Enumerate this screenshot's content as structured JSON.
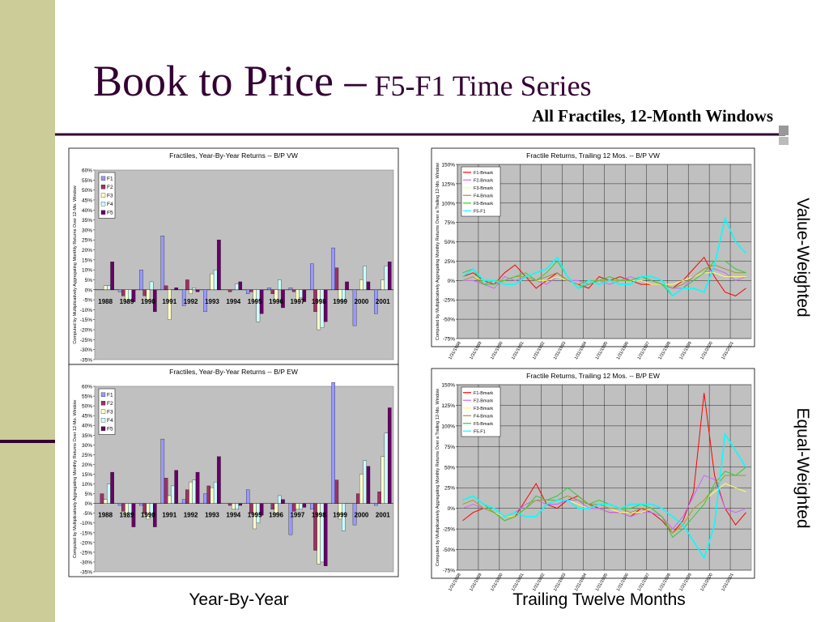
{
  "slide": {
    "title": "Book to Price –",
    "title_small": "F5-F1 Time Series",
    "subtitle": "All Fractiles, 12-Month Windows",
    "side_labels": [
      "Value-Weighted",
      "Equal-Weighted"
    ],
    "bottom_labels": [
      "Year-By-Year",
      "Trailing Twelve Months"
    ]
  },
  "chart_data": [
    {
      "type": "bar",
      "title": "Fractiles, Year-By-Year Returns -- B/P VW",
      "y_label": "Computed by Multiplicatively Aggregating Monthly Returns Over 12-Mo. Window",
      "categories": [
        "1988",
        "1989",
        "1990",
        "1991",
        "1992",
        "1993",
        "1994",
        "1995",
        "1996",
        "1997",
        "1998",
        "1999",
        "2000",
        "2001"
      ],
      "series": [
        {
          "name": "F1",
          "color": "#9999ff",
          "values": [
            0,
            -1,
            10,
            27,
            -8,
            -11,
            0,
            -2,
            1,
            1,
            13,
            21,
            -18,
            -12
          ]
        },
        {
          "name": "F2",
          "color": "#993366",
          "values": [
            0,
            -3,
            -3,
            2,
            5,
            0,
            -1,
            -1,
            -2,
            -1,
            -11,
            11,
            0,
            0
          ]
        },
        {
          "name": "F3",
          "color": "#ffffcc",
          "values": [
            2,
            -6,
            -5,
            -15,
            -2,
            8,
            0,
            -6,
            -6,
            -6,
            -20,
            -5,
            5,
            5
          ]
        },
        {
          "name": "F4",
          "color": "#ccffff",
          "values": [
            2,
            -5,
            4,
            0,
            1,
            10,
            3,
            -16,
            5,
            -4,
            -19,
            -6,
            12,
            12
          ]
        },
        {
          "name": "F5",
          "color": "#660066",
          "values": [
            14,
            -6,
            -11,
            1,
            -1,
            25,
            4,
            -12,
            -9,
            -6,
            -16,
            4,
            4,
            14
          ]
        }
      ],
      "ylim": [
        -35,
        60
      ],
      "yticks": [
        {
          "value": -35,
          "label": "-35%"
        },
        {
          "value": -30,
          "label": "-30%"
        },
        {
          "value": -25,
          "label": "-25%"
        },
        {
          "value": -20,
          "label": "-20%"
        },
        {
          "value": -15,
          "label": "-15%"
        },
        {
          "value": -10,
          "label": "-10%"
        },
        {
          "value": -5,
          "label": "-5%"
        },
        {
          "value": 0,
          "label": "0%"
        },
        {
          "value": 5,
          "label": "5%"
        },
        {
          "value": 10,
          "label": "10%"
        },
        {
          "value": 15,
          "label": "15%"
        },
        {
          "value": 20,
          "label": "20%"
        },
        {
          "value": 25,
          "label": "25%"
        },
        {
          "value": 30,
          "label": "30%"
        },
        {
          "value": 35,
          "label": "35%"
        },
        {
          "value": 40,
          "label": "40%"
        },
        {
          "value": 45,
          "label": "45%"
        },
        {
          "value": 50,
          "label": "50%"
        },
        {
          "value": 55,
          "label": "55%"
        },
        {
          "value": 60,
          "label": "60%"
        }
      ],
      "grid": false,
      "legend": "upper left"
    },
    {
      "type": "line",
      "title": "Fractile Returns, Trailing 12 Mos. -- B/P VW",
      "y_label": "Computed by Multiplicatively Aggregating Monthly Returns Over a Trailing 12-Mo. Window",
      "categories": [
        "1/31/1988",
        null,
        "1/31/1989",
        null,
        "1/31/1990",
        null,
        "1/31/1991",
        null,
        "1/31/1992",
        null,
        "1/31/1993",
        null,
        "1/31/1994",
        null,
        "1/31/1995",
        null,
        "1/31/1996",
        null,
        "1/31/1997",
        null,
        "1/31/1998",
        null,
        "1/31/1999",
        null,
        "1/31/2000",
        null,
        "1/31/2001",
        null
      ],
      "series": [
        {
          "name": "F1-Bmark",
          "color": "#ff0000",
          "values": [
            5,
            10,
            0,
            -5,
            10,
            20,
            5,
            -10,
            0,
            10,
            0,
            -5,
            -10,
            5,
            0,
            5,
            0,
            -5,
            -5,
            -5,
            -10,
            0,
            15,
            30,
            5,
            -15,
            -20,
            -10
          ]
        },
        {
          "name": "F2-Bmark",
          "color": "#cc66ff",
          "values": [
            0,
            0,
            -5,
            -10,
            5,
            0,
            5,
            0,
            -5,
            5,
            0,
            0,
            -5,
            0,
            -5,
            0,
            5,
            0,
            -5,
            -5,
            -10,
            -10,
            5,
            10,
            15,
            10,
            0,
            5
          ]
        },
        {
          "name": "F3-Bmark",
          "color": "#ffff66",
          "values": [
            0,
            5,
            0,
            0,
            0,
            5,
            5,
            0,
            0,
            5,
            0,
            -5,
            0,
            0,
            0,
            0,
            0,
            0,
            -5,
            -5,
            -5,
            0,
            5,
            10,
            10,
            5,
            5,
            5
          ]
        },
        {
          "name": "F4-Bmark",
          "color": "#999933",
          "values": [
            0,
            5,
            -5,
            0,
            0,
            5,
            5,
            0,
            5,
            10,
            0,
            -5,
            0,
            0,
            0,
            0,
            0,
            5,
            0,
            -5,
            -10,
            -5,
            5,
            15,
            20,
            15,
            10,
            10
          ]
        },
        {
          "name": "F5-Bmark",
          "color": "#33cc33",
          "values": [
            10,
            15,
            -5,
            -5,
            0,
            5,
            10,
            0,
            10,
            25,
            5,
            -10,
            -5,
            0,
            5,
            0,
            0,
            5,
            0,
            -5,
            -20,
            -10,
            0,
            10,
            25,
            25,
            15,
            10
          ]
        },
        {
          "name": "F5-F1",
          "color": "#00ffff",
          "values": [
            5,
            15,
            0,
            0,
            -5,
            -5,
            5,
            10,
            15,
            30,
            5,
            -10,
            0,
            -5,
            0,
            -5,
            -5,
            5,
            5,
            0,
            -20,
            -10,
            -10,
            -15,
            20,
            80,
            50,
            35
          ]
        }
      ],
      "ylim": [
        -75,
        150
      ],
      "yticks": [
        {
          "value": -75,
          "label": "-75%"
        },
        {
          "value": -50,
          "label": "-50%"
        },
        {
          "value": -25,
          "label": "-25%"
        },
        {
          "value": 0,
          "label": "0%"
        },
        {
          "value": 25,
          "label": "25%"
        },
        {
          "value": 50,
          "label": "50%"
        },
        {
          "value": 75,
          "label": "75%"
        },
        {
          "value": 100,
          "label": "100%"
        },
        {
          "value": 125,
          "label": "125%"
        },
        {
          "value": 150,
          "label": "150%"
        }
      ],
      "grid": true,
      "legend": "upper left"
    },
    {
      "type": "bar",
      "title": "Fractiles, Year-By-Year Returns -- B/P EW",
      "y_label": "Computed by Multiplicatively Aggregating Monthly Returns Over 12-Mo. Window",
      "categories": [
        "1988",
        "1989",
        "1990",
        "1991",
        "1992",
        "1993",
        "1994",
        "1995",
        "1996",
        "1997",
        "1998",
        "1999",
        "2000",
        "2001"
      ],
      "series": [
        {
          "name": "F1",
          "color": "#9999ff",
          "values": [
            0,
            -1,
            -1,
            33,
            2,
            5,
            0,
            7,
            0,
            -16,
            -3,
            62,
            -11,
            -1
          ]
        },
        {
          "name": "F2",
          "color": "#993366",
          "values": [
            5,
            -4,
            -5,
            13,
            7,
            9,
            -1,
            -5,
            -3,
            -4,
            -24,
            12,
            5,
            6
          ]
        },
        {
          "name": "F3",
          "color": "#ffffcc",
          "values": [
            2,
            -7,
            -8,
            4,
            11,
            8,
            -3,
            -13,
            -5,
            -3,
            -31,
            -8,
            15,
            24
          ]
        },
        {
          "name": "F4",
          "color": "#ccffff",
          "values": [
            10,
            -7,
            -7,
            9,
            12,
            11,
            -3,
            -10,
            4,
            -3,
            -30,
            -14,
            22,
            36
          ]
        },
        {
          "name": "F5",
          "color": "#660066",
          "values": [
            16,
            -12,
            -12,
            17,
            16,
            24,
            -1,
            -6,
            2,
            -2,
            -32,
            0,
            19,
            49
          ]
        }
      ],
      "ylim": [
        -35,
        60
      ],
      "yticks": [
        {
          "value": -35,
          "label": "-35%"
        },
        {
          "value": -30,
          "label": "-30%"
        },
        {
          "value": -25,
          "label": "-25%"
        },
        {
          "value": -20,
          "label": "-20%"
        },
        {
          "value": -15,
          "label": "-15%"
        },
        {
          "value": -10,
          "label": "-10%"
        },
        {
          "value": -5,
          "label": "-5%"
        },
        {
          "value": 0,
          "label": "0%"
        },
        {
          "value": 5,
          "label": "5%"
        },
        {
          "value": 10,
          "label": "10%"
        },
        {
          "value": 15,
          "label": "15%"
        },
        {
          "value": 20,
          "label": "20%"
        },
        {
          "value": 25,
          "label": "25%"
        },
        {
          "value": 30,
          "label": "30%"
        },
        {
          "value": 35,
          "label": "35%"
        },
        {
          "value": 40,
          "label": "40%"
        },
        {
          "value": 45,
          "label": "45%"
        },
        {
          "value": 50,
          "label": "50%"
        },
        {
          "value": 55,
          "label": "55%"
        },
        {
          "value": 60,
          "label": "60%"
        }
      ],
      "grid": false,
      "legend": "upper left"
    },
    {
      "type": "line",
      "title": "Fractile Returns, Trailing 12 Mos. -- B/P EW",
      "y_label": "Computed by Multiplicatively Aggregating Monthly Returns Over a Trailing 12-Mo. Window",
      "categories": [
        "1/31/1988",
        null,
        "1/31/1989",
        null,
        "1/31/1990",
        null,
        "1/31/1991",
        null,
        "1/31/1992",
        null,
        "1/31/1993",
        null,
        "1/31/1994",
        null,
        "1/31/1995",
        null,
        "1/31/1996",
        null,
        "1/31/1997",
        null,
        "1/31/1998",
        null,
        "1/31/1999",
        null,
        "1/31/2000",
        null,
        "1/31/2001",
        null
      ],
      "series": [
        {
          "name": "F1-Bmark",
          "color": "#ff0000",
          "values": [
            -15,
            -5,
            0,
            -5,
            -10,
            -10,
            10,
            30,
            5,
            0,
            10,
            15,
            5,
            0,
            -5,
            -5,
            -10,
            0,
            -5,
            -15,
            -30,
            -15,
            20,
            140,
            40,
            0,
            -20,
            -5
          ]
        },
        {
          "name": "F2-Bmark",
          "color": "#cc66ff",
          "values": [
            0,
            5,
            0,
            -5,
            -10,
            -5,
            5,
            10,
            5,
            5,
            10,
            10,
            0,
            0,
            -5,
            -5,
            -10,
            -5,
            -5,
            -10,
            -25,
            -10,
            15,
            40,
            35,
            0,
            -5,
            0
          ]
        },
        {
          "name": "F3-Bmark",
          "color": "#ffff66",
          "values": [
            5,
            10,
            0,
            -5,
            -10,
            -10,
            0,
            10,
            10,
            10,
            10,
            5,
            0,
            5,
            0,
            -5,
            -5,
            -5,
            0,
            -10,
            -30,
            -20,
            0,
            10,
            20,
            30,
            25,
            20
          ]
        },
        {
          "name": "F4-Bmark",
          "color": "#999933",
          "values": [
            5,
            10,
            0,
            -5,
            -15,
            -10,
            0,
            10,
            10,
            10,
            15,
            10,
            5,
            5,
            0,
            0,
            -5,
            0,
            0,
            -10,
            -30,
            -20,
            0,
            10,
            25,
            40,
            40,
            40
          ]
        },
        {
          "name": "F5-Bmark",
          "color": "#33cc33",
          "values": [
            10,
            15,
            5,
            -5,
            -15,
            -10,
            0,
            15,
            10,
            15,
            25,
            15,
            5,
            10,
            5,
            0,
            0,
            5,
            0,
            -10,
            -35,
            -25,
            -10,
            5,
            30,
            45,
            40,
            50
          ]
        },
        {
          "name": "F5-F1",
          "color": "#00ffff",
          "values": [
            10,
            15,
            5,
            0,
            -10,
            -5,
            -10,
            -10,
            5,
            10,
            10,
            0,
            0,
            5,
            5,
            0,
            5,
            5,
            5,
            0,
            -10,
            -20,
            -40,
            -60,
            -20,
            90,
            70,
            50
          ]
        }
      ],
      "ylim": [
        -75,
        150
      ],
      "yticks": [
        {
          "value": -75,
          "label": "-75%"
        },
        {
          "value": -50,
          "label": "-50%"
        },
        {
          "value": -25,
          "label": "-25%"
        },
        {
          "value": 0,
          "label": "0%"
        },
        {
          "value": 25,
          "label": "25%"
        },
        {
          "value": 50,
          "label": "50%"
        },
        {
          "value": 75,
          "label": "75%"
        },
        {
          "value": 100,
          "label": "100%"
        },
        {
          "value": 125,
          "label": "125%"
        },
        {
          "value": 150,
          "label": "150%"
        }
      ],
      "grid": true,
      "legend": "upper left"
    }
  ]
}
